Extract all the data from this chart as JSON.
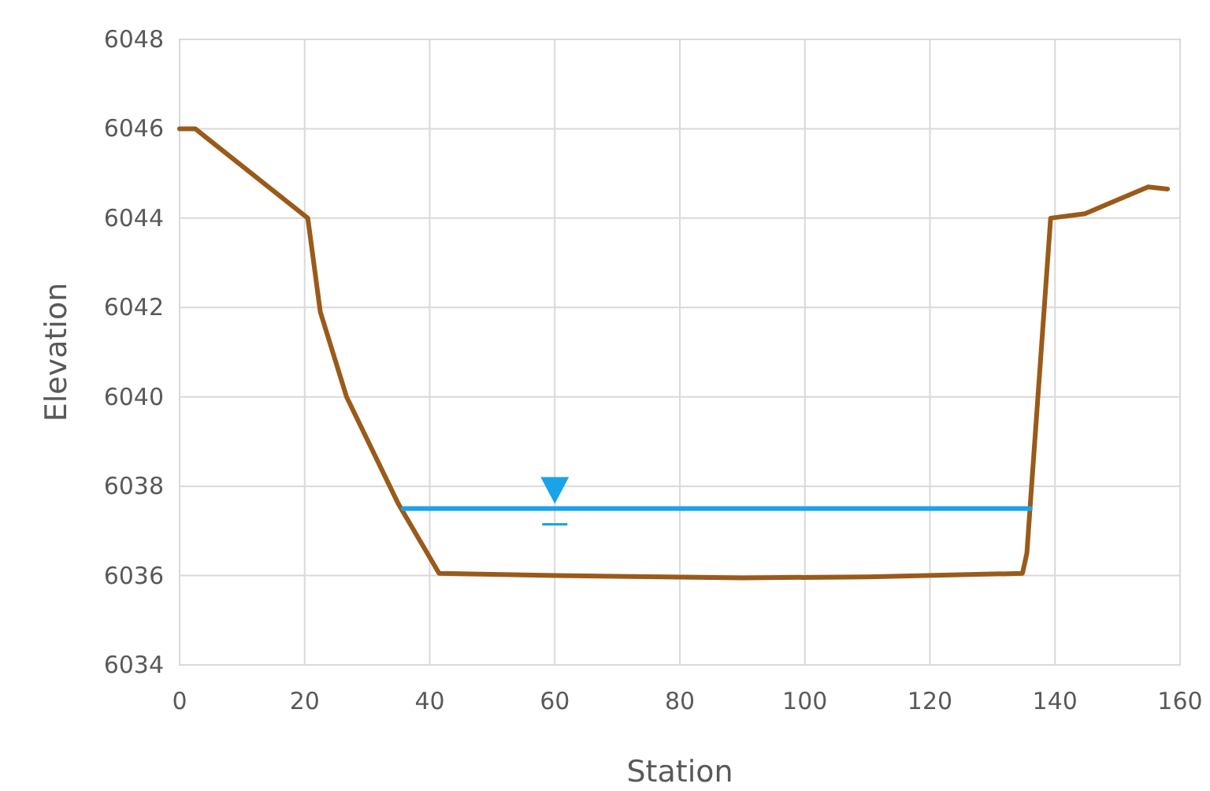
{
  "chart_data": {
    "type": "line",
    "xlabel": "Station",
    "ylabel": "Elevation",
    "xlim": [
      0,
      160
    ],
    "xticks": [
      0,
      20,
      40,
      60,
      80,
      100,
      120,
      140,
      160
    ],
    "ylim": [
      6034,
      6048
    ],
    "yticks": [
      6034,
      6036,
      6038,
      6040,
      6042,
      6044,
      6046,
      6048
    ],
    "grid": true,
    "marker": "none",
    "line_style": "solid",
    "series": [
      {
        "color": "#9a5a1a",
        "x": [
          0,
          2.5,
          20.5,
          22.5,
          26.7,
          35,
          41.5,
          60,
          90,
          110,
          134.8,
          135.5,
          136,
          139.3,
          144.8,
          154.9,
          158
        ],
        "values": [
          6046,
          6046,
          6044,
          6041.9,
          6040,
          6037.6,
          6036.05,
          6036,
          6035.95,
          6035.97,
          6036.05,
          6036.5,
          6037.5,
          6044,
          6044.1,
          6044.7,
          6044.65
        ]
      },
      {
        "color": "#1aa3e8",
        "x": [
          35.8,
          136
        ],
        "values": [
          6037.5,
          6037.5
        ]
      }
    ]
  }
}
